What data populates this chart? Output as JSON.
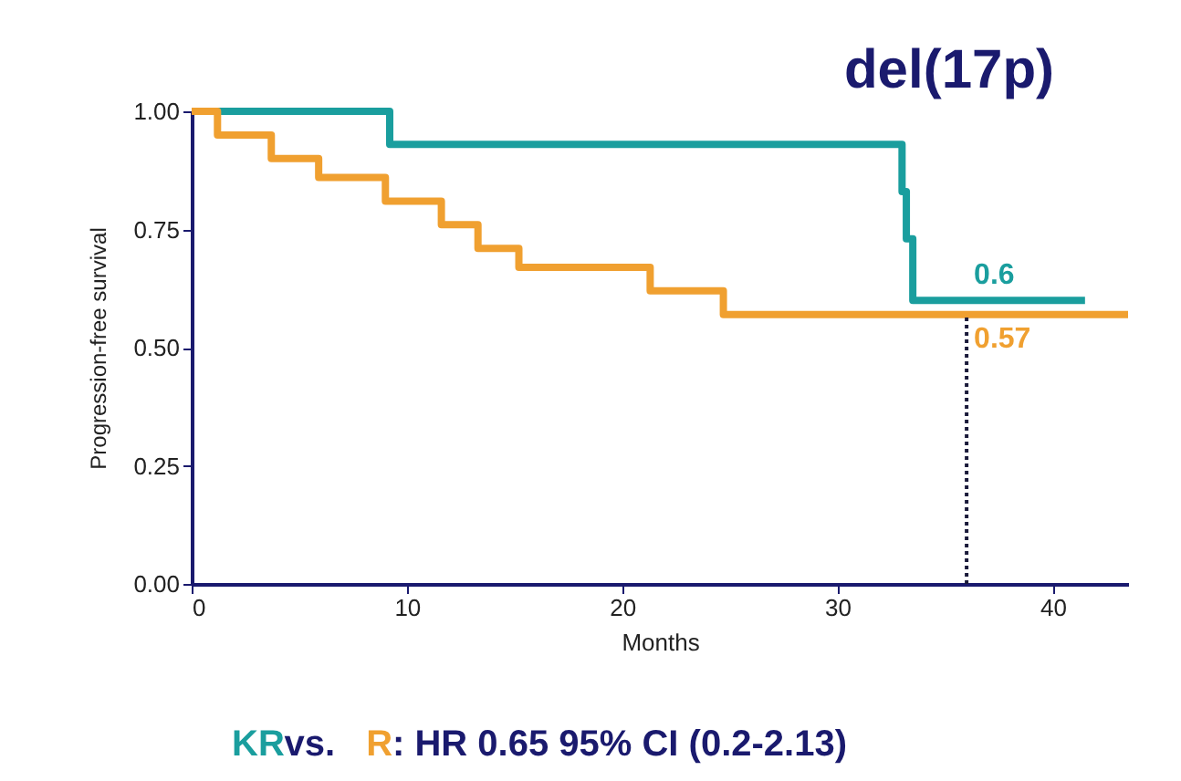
{
  "chart_data": {
    "type": "step",
    "title": "del(17p)",
    "xlabel": "Months",
    "ylabel": "Progression-free survival",
    "xlim": [
      0,
      43.5
    ],
    "xticks": [
      0,
      10,
      20,
      30,
      40
    ],
    "ylim": [
      0,
      1
    ],
    "yticks": [
      {
        "value": 0,
        "label": "0.00"
      },
      {
        "value": 0.25,
        "label": "0.25"
      },
      {
        "value": 0.5,
        "label": "0.50"
      },
      {
        "value": 0.75,
        "label": "0.75"
      },
      {
        "value": 1,
        "label": "1.00"
      }
    ],
    "grid": false,
    "legend": "bottom",
    "marker": "none",
    "series": [
      {
        "name": "KR",
        "color": "#1a9e9e",
        "x": [
          0,
          9.2,
          33.0,
          33.2,
          33.5,
          41.5
        ],
        "values": [
          1.0,
          0.93,
          0.83,
          0.73,
          0.6,
          0.6
        ]
      },
      {
        "name": "R",
        "color": "#f0a030",
        "x": [
          0,
          1.2,
          3.7,
          5.9,
          9.0,
          11.6,
          13.3,
          15.2,
          21.3,
          24.7,
          43.5
        ],
        "values": [
          1.0,
          0.95,
          0.9,
          0.86,
          0.81,
          0.76,
          0.71,
          0.67,
          0.62,
          0.57,
          0.57
        ]
      },
      {
        "type": "line",
        "color": "#1a1a3a",
        "line_style": "dotted",
        "x": [
          36,
          36
        ],
        "values": [
          0,
          0.57
        ]
      }
    ],
    "annotations": [
      {
        "text": "0.6",
        "x": 36,
        "y": 0.6
      },
      {
        "text": "0.57",
        "x": 36,
        "y": 0.57
      },
      " vs. ",
      ": HR 0.65 95% CI (0.2-2.13)"
    ]
  }
}
